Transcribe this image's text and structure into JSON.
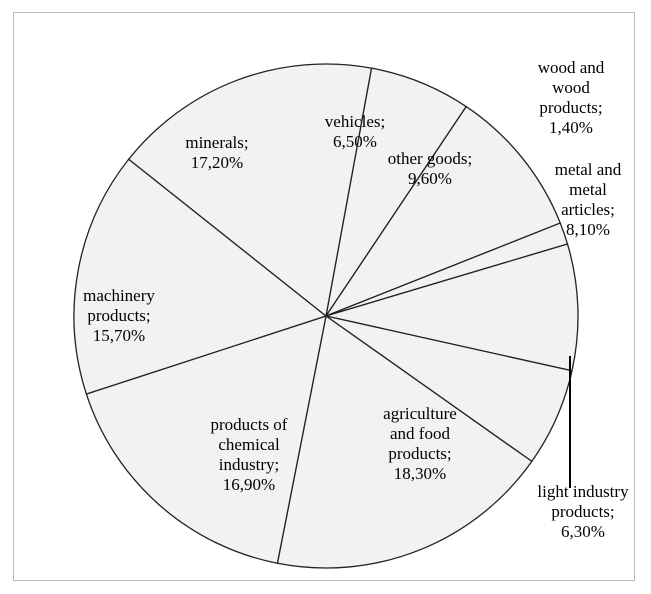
{
  "chart_data": {
    "type": "pie",
    "title": "",
    "unit": "%",
    "slices": [
      {
        "label": [
          "vehicles;",
          "6,50%"
        ],
        "value": 6.5
      },
      {
        "label": [
          "other goods;",
          "9,60%"
        ],
        "value": 9.6
      },
      {
        "label": [
          "wood and",
          "wood",
          "products;",
          "1,40%"
        ],
        "value": 1.4
      },
      {
        "label": [
          "metal and",
          "metal",
          "articles;",
          "8,10%"
        ],
        "value": 8.1
      },
      {
        "label": [
          "light industry",
          "products;",
          "6,30%"
        ],
        "value": 6.3
      },
      {
        "label": [
          "agriculture",
          "and food",
          "products;",
          "18,30%"
        ],
        "value": 18.3
      },
      {
        "label": [
          "products of",
          "chemical",
          "industry;",
          "16,90%"
        ],
        "value": 16.9
      },
      {
        "label": [
          "machinery",
          "products;",
          "15,70%"
        ],
        "value": 15.7
      },
      {
        "label": [
          "minerals;",
          "17,20%"
        ],
        "value": 17.2
      }
    ],
    "colors": {
      "fill": "#f2f2f2",
      "stroke": "#222222",
      "frame": "#bbbbbb"
    }
  }
}
